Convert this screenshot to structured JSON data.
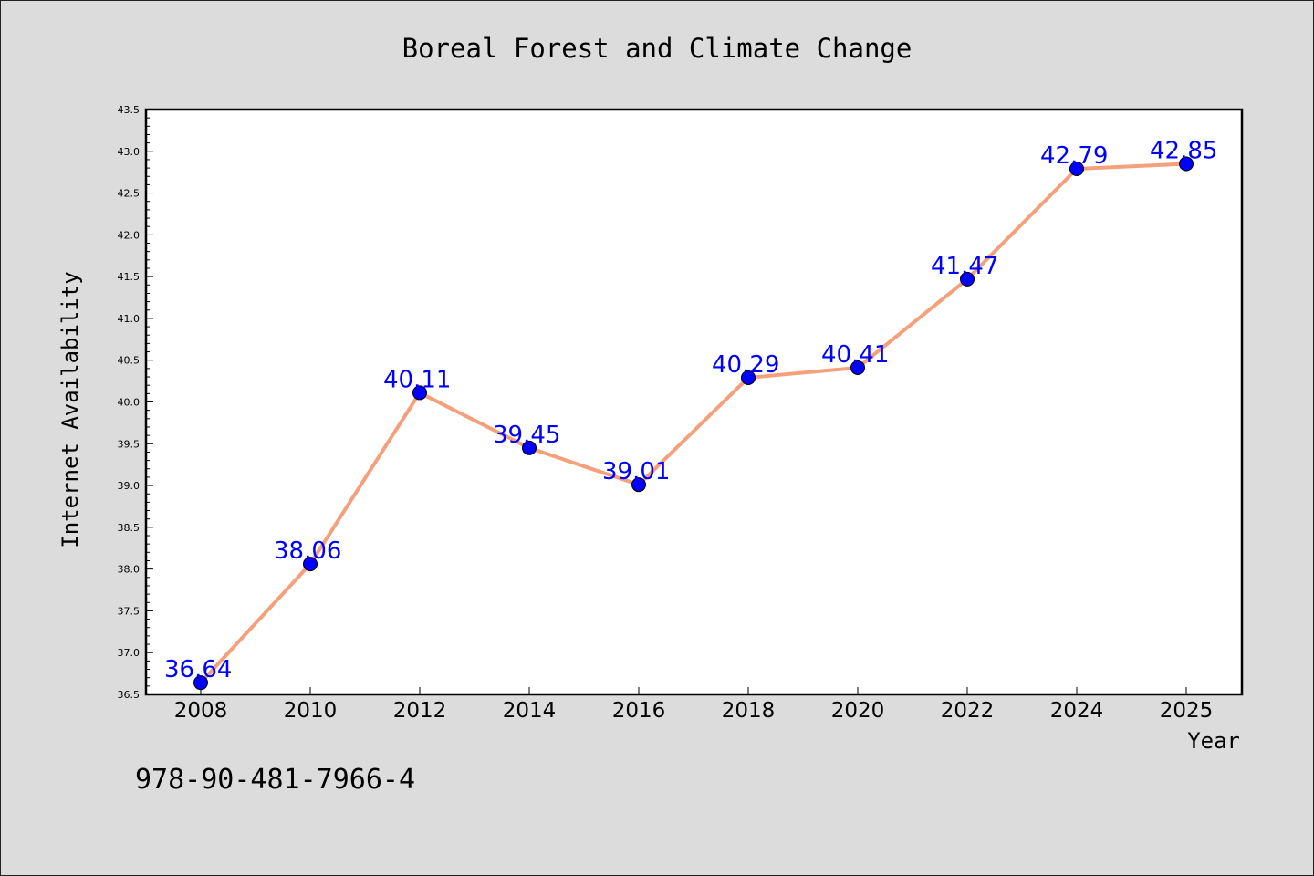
{
  "chart_data": {
    "type": "line",
    "title": "Boreal Forest and Climate Change",
    "xlabel": "Year",
    "ylabel": "Internet Availability",
    "x": [
      "2008",
      "2010",
      "2012",
      "2014",
      "2016",
      "2018",
      "2020",
      "2022",
      "2024",
      "2025"
    ],
    "values": [
      36.64,
      38.06,
      40.11,
      39.45,
      39.01,
      40.29,
      40.41,
      41.47,
      42.79,
      42.85
    ],
    "data_labels": [
      "36.64",
      "38.06",
      "40.11",
      "39.45",
      "39.01",
      "40.29",
      "40.41",
      "41.47",
      "42.79",
      "42.85"
    ],
    "yticks": [
      "36.5",
      "37.0",
      "37.5",
      "38.0",
      "38.5",
      "39.0",
      "39.5",
      "40.0",
      "40.5",
      "41.0",
      "41.5",
      "42.0",
      "42.5",
      "43.0",
      "43.5"
    ],
    "ylim": [
      36.5,
      43.5
    ],
    "grid": false,
    "line_color": "#f4a07c",
    "marker_color": "#0000ff",
    "label_color": "#0000ff"
  },
  "annotation": "978-90-481-7966-4"
}
